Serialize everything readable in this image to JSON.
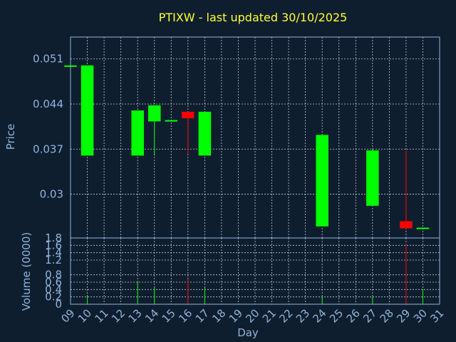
{
  "title": "PTIXW - last updated 30/10/2025",
  "colors": {
    "background": "#0f1e2f",
    "title": "#ffff33",
    "axis_text": "#8fb4dc",
    "up": "#00ff00",
    "down": "#ff0000",
    "frame": "#8fb4dc",
    "grid": "#ffffff"
  },
  "chart_data": [
    {
      "type": "candlestick",
      "title": "PTIXW - last updated 30/10/2025",
      "ylabel": "Price",
      "ylim": [
        0.0232,
        0.0544
      ],
      "yticks": [
        0.03,
        0.037,
        0.044,
        0.051
      ],
      "ytick_labels": [
        "0.03",
        "0.037",
        "0.044",
        "0.051"
      ],
      "xlim": [
        9,
        31
      ],
      "grid": true,
      "candles": [
        {
          "day": 9,
          "open": 0.05,
          "high": 0.05,
          "low": 0.05,
          "close": 0.05
        },
        {
          "day": 10,
          "open": 0.036,
          "high": 0.05,
          "low": 0.036,
          "close": 0.05
        },
        {
          "day": 13,
          "open": 0.036,
          "high": 0.043,
          "low": 0.036,
          "close": 0.043
        },
        {
          "day": 14,
          "open": 0.0413,
          "high": 0.0438,
          "low": 0.036,
          "close": 0.0438
        },
        {
          "day": 15,
          "open": 0.0415,
          "high": 0.0415,
          "low": 0.0415,
          "close": 0.0415
        },
        {
          "day": 16,
          "open": 0.0428,
          "high": 0.0428,
          "low": 0.0362,
          "close": 0.0418
        },
        {
          "day": 17,
          "open": 0.036,
          "high": 0.0428,
          "low": 0.036,
          "close": 0.0428
        },
        {
          "day": 24,
          "open": 0.025,
          "high": 0.0393,
          "low": 0.025,
          "close": 0.0392
        },
        {
          "day": 27,
          "open": 0.0282,
          "high": 0.037,
          "low": 0.0282,
          "close": 0.0368
        },
        {
          "day": 29,
          "open": 0.0258,
          "high": 0.0368,
          "low": 0.0246,
          "close": 0.0247
        },
        {
          "day": 30,
          "open": 0.0247,
          "high": 0.0248,
          "low": 0.0247,
          "close": 0.0248
        }
      ]
    },
    {
      "type": "bar",
      "ylabel": "Volume (0000)",
      "xlabel": "Day",
      "ylim": [
        0,
        1.8
      ],
      "yticks": [
        0,
        0.2,
        0.4,
        0.6,
        0.8,
        1.2,
        1.4,
        1.6,
        1.8
      ],
      "ytick_labels": [
        "0",
        "0.2",
        "0.4",
        "0.6",
        "0.8",
        "1.2",
        "1.4",
        "1.6",
        "1.8"
      ],
      "xlim": [
        9,
        31
      ],
      "xticks": [
        9,
        10,
        11,
        12,
        13,
        14,
        15,
        16,
        17,
        18,
        19,
        20,
        21,
        22,
        23,
        24,
        25,
        26,
        27,
        28,
        29,
        30,
        31
      ],
      "xtick_labels": [
        "09",
        "10",
        "11",
        "12",
        "13",
        "14",
        "15",
        "16",
        "17",
        "18",
        "19",
        "20",
        "21",
        "22",
        "23",
        "24",
        "25",
        "26",
        "27",
        "28",
        "29",
        "30",
        "31"
      ],
      "grid": true,
      "bars": [
        {
          "day": 10,
          "value": 0.22,
          "direction": "up"
        },
        {
          "day": 13,
          "value": 0.6,
          "direction": "up"
        },
        {
          "day": 14,
          "value": 0.45,
          "direction": "up"
        },
        {
          "day": 16,
          "value": 0.68,
          "direction": "down"
        },
        {
          "day": 17,
          "value": 0.45,
          "direction": "up"
        },
        {
          "day": 24,
          "value": 0.22,
          "direction": "up"
        },
        {
          "day": 27,
          "value": 0.2,
          "direction": "up"
        },
        {
          "day": 29,
          "value": 1.65,
          "direction": "down"
        },
        {
          "day": 30,
          "value": 0.4,
          "direction": "up"
        }
      ]
    }
  ]
}
